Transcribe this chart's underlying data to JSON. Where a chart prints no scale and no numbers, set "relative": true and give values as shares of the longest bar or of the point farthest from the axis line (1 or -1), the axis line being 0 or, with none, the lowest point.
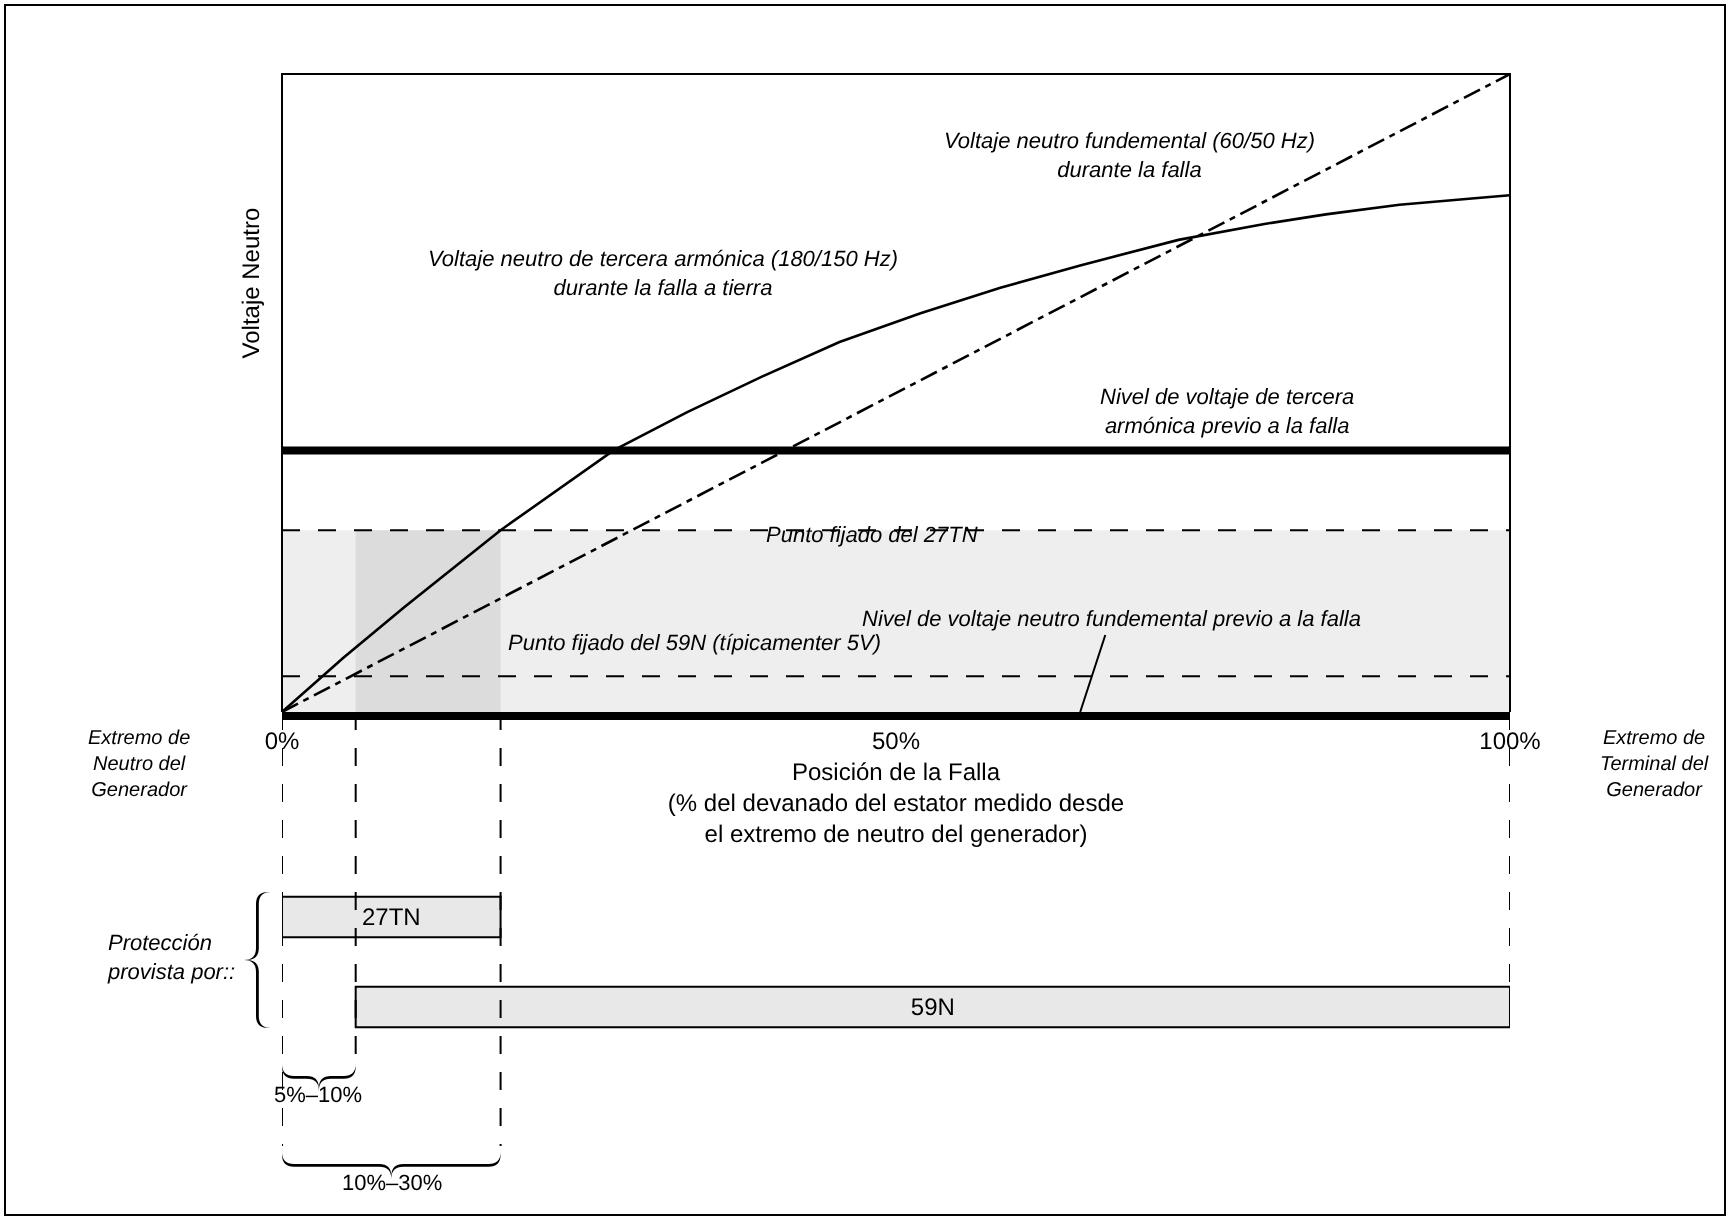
{
  "chart_data": [
    {
      "type": "line",
      "relative": true,
      "xlabel": "Posición de la Falla\n(% del devanado del estator medido desde\nel extremo de neutro del generador)",
      "ylabel": "Voltaje Neutro",
      "xlim": [
        0,
        100
      ],
      "xticks": [
        {
          "value": 0,
          "label": "0%"
        },
        {
          "value": 50,
          "label": "50%"
        },
        {
          "value": 100,
          "label": "100%"
        }
      ],
      "tick_labels": "x",
      "series": [
        {
          "name": "Voltaje neutro fundemental (60/50 Hz)\ndurante la falla",
          "color": "#000000",
          "line_style": "dashed",
          "x": [
            0,
            100
          ],
          "values": [
            0,
            1
          ]
        },
        {
          "name": "Voltaje neutro de tercera armónica (180/150 Hz)\ndurante la falla a tierra",
          "color": "#000000",
          "line_style": "solid",
          "x": [
            0,
            5,
            10,
            17.8,
            27,
            33,
            39,
            45.4,
            52,
            58.5,
            65,
            73,
            80,
            85,
            91,
            97.6,
            100
          ],
          "values": [
            0,
            0.085,
            0.165,
            0.285,
            0.41,
            0.47,
            0.525,
            0.58,
            0.625,
            0.665,
            0.7,
            0.74,
            0.765,
            0.78,
            0.795,
            0.806,
            0.81
          ]
        }
      ],
      "ref_lines": [
        {
          "axis": "y",
          "value": 0.41,
          "label": "Nivel de voltaje de tercera\narmónica previo a la falla",
          "line_style": "solid",
          "color": "#000000"
        },
        {
          "axis": "y",
          "value": 0.285,
          "label": "Punto fijado del 27TN",
          "line_style": "dashed",
          "color": "#000000"
        },
        {
          "axis": "y",
          "value": 0.056,
          "label": "Punto fijado del 59N (típicamenter 5V)",
          "line_style": "dashed",
          "color": "#000000"
        }
      ],
      "bands": [
        {
          "axis": "y",
          "from": 0,
          "to": 0.285,
          "color": "#eeeeee"
        },
        {
          "axis": "x",
          "from": 6,
          "to": 17.8,
          "color": "#dcdcdc"
        }
      ],
      "annotations": [
        "Extremo de\nNeutro del\nGenerador",
        "Extremo de\nTerminal del\nGenerador",
        {
          "text": "Nivel de voltaje neutro fundemental previo a la falla",
          "x": 65,
          "y": 0
        }
      ]
    },
    {
      "type": "bar",
      "orientation": "horizontal",
      "categories": [
        "27TN",
        "59N"
      ],
      "base": [
        0,
        6
      ],
      "values": [
        17.8,
        94
      ],
      "color": "#e8e8e8",
      "xlim": [
        0,
        100
      ],
      "tick_labels": false,
      "ref_lines": [
        {
          "axis": "x",
          "value": 0,
          "line_style": "dashed",
          "color": "#000000"
        },
        {
          "axis": "x",
          "value": 6,
          "line_style": "dashed",
          "color": "#000000"
        },
        {
          "axis": "x",
          "value": 17.8,
          "line_style": "dashed",
          "color": "#000000"
        },
        {
          "axis": "x",
          "value": 100,
          "line_style": "dashed",
          "color": "#000000"
        }
      ],
      "annotations": [
        "Protección\nprovista por::",
        "5%–10%",
        "10%–30%"
      ]
    }
  ]
}
